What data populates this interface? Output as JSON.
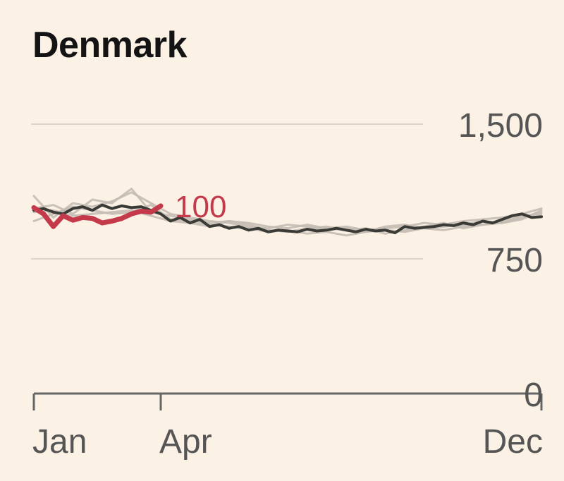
{
  "chart_data": {
    "type": "line",
    "title": "Denmark",
    "xlabel": "",
    "ylabel": "",
    "ylim": [
      0,
      1500
    ],
    "y_ticks": [
      "1,500",
      "750",
      "0"
    ],
    "y_tick_values": [
      1500,
      750,
      0
    ],
    "x_ticks": [
      "Jan",
      "Apr",
      "Dec"
    ],
    "x_tick_weeks": [
      1,
      14,
      53
    ],
    "xlim": [
      1,
      53
    ],
    "grid": true,
    "legend": "none",
    "current_label": "100",
    "colors": {
      "current": "#c43a4b",
      "average": "#3a3a36",
      "previous": "#c4bdb2"
    },
    "series": [
      {
        "role": "current",
        "x": [
          1,
          2,
          3,
          4,
          5,
          6,
          7,
          8,
          9,
          10,
          11,
          12,
          13,
          14
        ],
        "values": [
          1035,
          1000,
          930,
          990,
          965,
          980,
          975,
          950,
          960,
          975,
          1000,
          1015,
          1010,
          1045
        ]
      },
      {
        "role": "average",
        "x": [
          1,
          2,
          3,
          4,
          5,
          6,
          7,
          8,
          9,
          10,
          11,
          12,
          13,
          14,
          15,
          16,
          17,
          18,
          19,
          20,
          21,
          22,
          23,
          24,
          25,
          26,
          27,
          28,
          29,
          30,
          31,
          32,
          33,
          34,
          35,
          36,
          37,
          38,
          39,
          40,
          41,
          42,
          43,
          44,
          45,
          46,
          47,
          48,
          49,
          50,
          51,
          52,
          53
        ],
        "values": [
          1020,
          1030,
          1010,
          1000,
          1030,
          1040,
          1020,
          1050,
          1030,
          1045,
          1035,
          1040,
          1020,
          1000,
          960,
          980,
          950,
          970,
          930,
          940,
          920,
          930,
          910,
          920,
          900,
          910,
          905,
          900,
          915,
          905,
          910,
          920,
          910,
          900,
          915,
          905,
          910,
          895,
          930,
          920,
          925,
          930,
          940,
          935,
          950,
          940,
          960,
          950,
          970,
          990,
          1000,
          980,
          985
        ]
      },
      {
        "role": "previous",
        "x": [
          1,
          3,
          5,
          7,
          9,
          11,
          13,
          15,
          17,
          19,
          21,
          23,
          25,
          27,
          29,
          31,
          33,
          35,
          37,
          39,
          41,
          43,
          45,
          47,
          49,
          51,
          53
        ],
        "values": [
          1100,
          980,
          1060,
          1040,
          1070,
          1120,
          1060,
          1000,
          980,
          960,
          950,
          930,
          920,
          940,
          930,
          910,
          920,
          900,
          930,
          940,
          920,
          930,
          940,
          960,
          950,
          980,
          1010
        ]
      },
      {
        "role": "previous",
        "x": [
          1,
          3,
          5,
          7,
          9,
          11,
          13,
          15,
          17,
          19,
          21,
          23,
          25,
          27,
          29,
          31,
          33,
          35,
          37,
          39,
          41,
          43,
          45,
          47,
          49,
          51,
          53
        ],
        "values": [
          1030,
          1050,
          1000,
          1080,
          1060,
          1140,
          1010,
          990,
          970,
          950,
          960,
          940,
          910,
          900,
          920,
          930,
          910,
          920,
          890,
          910,
          930,
          950,
          920,
          940,
          960,
          990,
          1000
        ]
      },
      {
        "role": "previous",
        "x": [
          1,
          3,
          5,
          7,
          9,
          11,
          13,
          15,
          17,
          19,
          21,
          23,
          25,
          27,
          29,
          31,
          33,
          35,
          37,
          39,
          41,
          43,
          45,
          47,
          49,
          51,
          53
        ],
        "values": [
          960,
          1000,
          1040,
          1020,
          1000,
          1010,
          1050,
          970,
          960,
          940,
          930,
          920,
          900,
          910,
          890,
          900,
          880,
          900,
          910,
          900,
          920,
          910,
          930,
          940,
          950,
          970,
          1020
        ]
      },
      {
        "role": "previous",
        "x": [
          1,
          3,
          5,
          7,
          9,
          11,
          13,
          15,
          17,
          19,
          21,
          23,
          25,
          27,
          29,
          31,
          33,
          35,
          37,
          39,
          41,
          43,
          45,
          47,
          49,
          51,
          53
        ],
        "values": [
          1010,
          1020,
          990,
          1000,
          1010,
          1020,
          990,
          960,
          950,
          930,
          960,
          950,
          930,
          920,
          940,
          920,
          930,
          910,
          920,
          930,
          950,
          940,
          960,
          970,
          980,
          1000,
          1030
        ]
      }
    ]
  }
}
